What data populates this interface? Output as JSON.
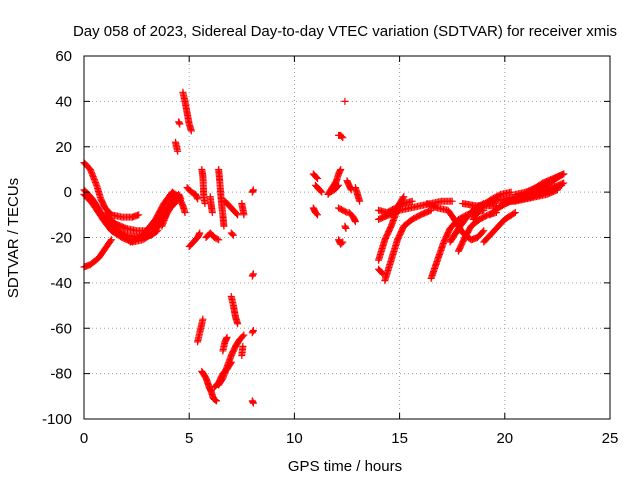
{
  "chart_data": {
    "type": "scatter",
    "title": "Day 058 of 2023, Sidereal Day-to-day VTEC variation (SDTVAR) for receiver xmis",
    "xlabel": "GPS time / hours",
    "ylabel": "SDTVAR / TECUs",
    "xlim": [
      0,
      25
    ],
    "ylim": [
      -100,
      60
    ],
    "xticks": [
      0,
      5,
      10,
      15,
      20,
      25
    ],
    "yticks": [
      -100,
      -80,
      -60,
      -40,
      -20,
      0,
      20,
      40,
      60
    ],
    "xtick_labels": [
      "0",
      "5",
      "10",
      "15",
      "20",
      "25"
    ],
    "ytick_labels": [
      "-100",
      "-80",
      "-60",
      "-40",
      "-20",
      "0",
      "20",
      "40",
      "60"
    ],
    "grid": true,
    "marker": "+",
    "marker_color": "#ff0000",
    "segments": [
      [
        [
          0.0,
          13
        ],
        [
          0.3,
          10
        ],
        [
          0.6,
          3
        ],
        [
          0.8,
          -3
        ],
        [
          1.0,
          -7
        ],
        [
          1.3,
          -10
        ],
        [
          1.8,
          -11
        ],
        [
          2.3,
          -11
        ],
        [
          2.6,
          -10
        ]
      ],
      [
        [
          0.0,
          1
        ],
        [
          0.4,
          -3
        ],
        [
          0.8,
          -9
        ],
        [
          1.2,
          -14
        ],
        [
          1.6,
          -17
        ],
        [
          2.0,
          -19
        ],
        [
          2.6,
          -20
        ],
        [
          3.2,
          -19
        ],
        [
          3.5,
          -17
        ]
      ],
      [
        [
          0.0,
          -1
        ],
        [
          0.4,
          -5
        ],
        [
          0.9,
          -12
        ],
        [
          1.3,
          -17
        ],
        [
          1.8,
          -20
        ],
        [
          2.3,
          -22
        ],
        [
          2.8,
          -21
        ],
        [
          3.3,
          -18
        ],
        [
          3.7,
          -13
        ],
        [
          4.1,
          -7
        ],
        [
          4.4,
          -4
        ]
      ],
      [
        [
          1.0,
          -10
        ],
        [
          1.5,
          -14
        ],
        [
          2.0,
          -16
        ],
        [
          2.5,
          -17
        ],
        [
          3.0,
          -17
        ],
        [
          3.4,
          -15
        ],
        [
          3.8,
          -10
        ],
        [
          4.1,
          -5
        ],
        [
          4.3,
          -1
        ]
      ],
      [
        [
          0.0,
          -33
        ],
        [
          0.3,
          -32
        ],
        [
          0.7,
          -29
        ],
        [
          1.0,
          -25
        ],
        [
          1.3,
          -21
        ]
      ],
      [
        [
          2.2,
          -22
        ],
        [
          2.8,
          -19
        ],
        [
          3.4,
          -12
        ],
        [
          3.8,
          -5
        ],
        [
          4.2,
          0
        ],
        [
          4.5,
          -2
        ],
        [
          4.7,
          -6
        ],
        [
          4.8,
          -9
        ]
      ],
      [
        [
          3.7,
          -15
        ],
        [
          4.0,
          -8
        ],
        [
          4.3,
          -3
        ],
        [
          4.5,
          -1
        ],
        [
          4.6,
          -3
        ]
      ],
      [
        [
          4.7,
          44
        ],
        [
          4.8,
          40
        ],
        [
          4.9,
          35
        ],
        [
          5.0,
          30
        ],
        [
          5.1,
          27
        ]
      ],
      [
        [
          4.5,
          31
        ],
        [
          4.55,
          30
        ]
      ],
      [
        [
          4.35,
          22
        ],
        [
          4.4,
          20
        ],
        [
          4.45,
          18
        ]
      ],
      [
        [
          4.9,
          2
        ],
        [
          5.1,
          0
        ],
        [
          5.3,
          -1
        ],
        [
          5.4,
          -3
        ]
      ],
      [
        [
          5.0,
          -24
        ],
        [
          5.2,
          -22
        ],
        [
          5.4,
          -20
        ],
        [
          5.5,
          -18
        ]
      ],
      [
        [
          5.8,
          -20
        ],
        [
          6.0,
          -18
        ],
        [
          6.2,
          -20
        ],
        [
          6.4,
          -21
        ]
      ],
      [
        [
          5.6,
          10
        ],
        [
          5.65,
          7
        ],
        [
          5.7,
          -3
        ],
        [
          5.75,
          -5
        ]
      ],
      [
        [
          6.0,
          -2
        ],
        [
          6.05,
          -6
        ],
        [
          6.1,
          -9
        ]
      ],
      [
        [
          6.4,
          10
        ],
        [
          6.45,
          5
        ],
        [
          6.5,
          -1
        ],
        [
          6.55,
          -6
        ],
        [
          6.6,
          -10
        ],
        [
          6.65,
          -15
        ]
      ],
      [
        [
          6.7,
          -4
        ],
        [
          6.9,
          -6
        ],
        [
          7.1,
          -8
        ],
        [
          7.3,
          -10
        ]
      ],
      [
        [
          7.5,
          -5
        ],
        [
          7.6,
          -10
        ]
      ],
      [
        [
          7.0,
          -18
        ],
        [
          7.1,
          -19
        ]
      ],
      [
        [
          8.0,
          0
        ],
        [
          8.05,
          1
        ]
      ],
      [
        [
          5.4,
          -66
        ],
        [
          5.5,
          -62
        ],
        [
          5.6,
          -58
        ],
        [
          5.65,
          -56
        ]
      ],
      [
        [
          5.6,
          -79
        ],
        [
          5.8,
          -82
        ],
        [
          5.95,
          -86
        ],
        [
          6.05,
          -88
        ],
        [
          6.15,
          -91
        ],
        [
          6.3,
          -92
        ]
      ],
      [
        [
          6.2,
          -86
        ],
        [
          6.4,
          -84
        ],
        [
          6.6,
          -80
        ],
        [
          6.8,
          -78
        ],
        [
          7.0,
          -75
        ]
      ],
      [
        [
          6.4,
          -85
        ],
        [
          6.6,
          -82
        ],
        [
          6.8,
          -77
        ],
        [
          7.0,
          -72
        ],
        [
          7.2,
          -68
        ],
        [
          7.4,
          -65
        ],
        [
          7.6,
          -63
        ]
      ],
      [
        [
          6.6,
          -70
        ],
        [
          6.7,
          -66
        ],
        [
          6.8,
          -64
        ]
      ],
      [
        [
          7.0,
          -46
        ],
        [
          7.1,
          -50
        ],
        [
          7.2,
          -55
        ],
        [
          7.3,
          -58
        ]
      ],
      [
        [
          7.5,
          -72
        ],
        [
          7.55,
          -68
        ]
      ],
      [
        [
          8.0,
          -92
        ],
        [
          8.05,
          -93
        ]
      ],
      [
        [
          8.0,
          -37
        ],
        [
          8.05,
          -36
        ]
      ],
      [
        [
          8.0,
          -62
        ],
        [
          8.05,
          -61
        ]
      ],
      [
        [
          10.9,
          8
        ],
        [
          11.0,
          7
        ],
        [
          11.1,
          6
        ]
      ],
      [
        [
          11.0,
          3
        ],
        [
          11.2,
          1
        ],
        [
          11.3,
          0
        ]
      ],
      [
        [
          10.9,
          -7
        ],
        [
          11.0,
          -9
        ],
        [
          11.1,
          -10
        ]
      ],
      [
        [
          11.6,
          -1
        ],
        [
          11.8,
          2
        ],
        [
          12.0,
          5
        ],
        [
          12.1,
          8
        ],
        [
          12.2,
          10
        ]
      ],
      [
        [
          11.7,
          0
        ],
        [
          11.9,
          1
        ],
        [
          12.1,
          3
        ]
      ],
      [
        [
          12.1,
          25
        ],
        [
          12.2,
          25
        ],
        [
          12.3,
          24
        ]
      ],
      [
        [
          12.4,
          40
        ]
      ],
      [
        [
          12.1,
          -7
        ],
        [
          12.3,
          -8
        ],
        [
          12.5,
          -9
        ]
      ],
      [
        [
          12.6,
          -9
        ],
        [
          12.8,
          -11
        ],
        [
          12.9,
          -13
        ]
      ],
      [
        [
          12.1,
          -21
        ],
        [
          12.2,
          -23
        ],
        [
          12.3,
          -22
        ]
      ],
      [
        [
          12.5,
          5
        ],
        [
          12.6,
          3
        ],
        [
          12.7,
          1
        ]
      ],
      [
        [
          12.9,
          2
        ],
        [
          13.0,
          -1
        ],
        [
          13.1,
          -4
        ]
      ],
      [
        [
          12.4,
          -15
        ],
        [
          12.45,
          -16
        ]
      ],
      [
        [
          14.0,
          -12
        ],
        [
          14.5,
          -10
        ],
        [
          15.0,
          -8
        ],
        [
          16.0,
          -6
        ],
        [
          17.0,
          -4
        ],
        [
          17.5,
          -4
        ]
      ],
      [
        [
          14.0,
          -8
        ],
        [
          14.4,
          -9
        ],
        [
          14.8,
          -7
        ],
        [
          15.2,
          -5
        ],
        [
          15.6,
          -4
        ]
      ],
      [
        [
          14.3,
          -39
        ],
        [
          14.6,
          -30
        ],
        [
          14.9,
          -21
        ],
        [
          15.2,
          -15
        ],
        [
          15.6,
          -12
        ],
        [
          16.0,
          -10
        ],
        [
          16.5,
          -8
        ]
      ],
      [
        [
          14.0,
          -30
        ],
        [
          14.3,
          -21
        ],
        [
          14.6,
          -15
        ],
        [
          14.8,
          -10
        ],
        [
          15.0,
          -5
        ],
        [
          15.2,
          -2
        ]
      ],
      [
        [
          14.0,
          -34
        ],
        [
          14.2,
          -36
        ]
      ],
      [
        [
          16.5,
          -38
        ],
        [
          16.8,
          -30
        ],
        [
          17.1,
          -22
        ],
        [
          17.4,
          -16
        ],
        [
          17.8,
          -12
        ],
        [
          18.2,
          -10
        ],
        [
          18.6,
          -9
        ],
        [
          19.0,
          -8
        ]
      ],
      [
        [
          16.3,
          -5
        ],
        [
          16.8,
          -7
        ],
        [
          17.3,
          -8
        ],
        [
          17.6,
          -12
        ],
        [
          18.0,
          -18
        ],
        [
          18.4,
          -21
        ],
        [
          18.7,
          -20
        ],
        [
          19.0,
          -17
        ]
      ],
      [
        [
          17.8,
          -26
        ],
        [
          18.1,
          -20
        ],
        [
          18.4,
          -15
        ],
        [
          18.8,
          -12
        ],
        [
          19.2,
          -10
        ],
        [
          19.6,
          -9
        ]
      ],
      [
        [
          18.5,
          -12
        ],
        [
          18.9,
          -6
        ],
        [
          19.4,
          -3
        ],
        [
          19.8,
          -1
        ],
        [
          20.3,
          0
        ]
      ],
      [
        [
          17.4,
          -22
        ],
        [
          17.8,
          -16
        ],
        [
          18.2,
          -11
        ],
        [
          18.6,
          -7
        ],
        [
          19.0,
          -5
        ]
      ],
      [
        [
          18.0,
          -5
        ],
        [
          18.6,
          -6
        ],
        [
          19.2,
          -6
        ],
        [
          19.6,
          -6
        ]
      ],
      [
        [
          19.0,
          -22
        ],
        [
          19.5,
          -17
        ],
        [
          20.0,
          -12
        ],
        [
          20.5,
          -9
        ]
      ],
      [
        [
          19.0,
          -6
        ],
        [
          19.5,
          -4
        ],
        [
          20.0,
          -3
        ],
        [
          20.5,
          -2
        ],
        [
          21.0,
          -1
        ],
        [
          21.5,
          1
        ],
        [
          22.0,
          3
        ],
        [
          22.6,
          7
        ]
      ],
      [
        [
          19.3,
          -10
        ],
        [
          19.8,
          -6
        ],
        [
          20.3,
          -4
        ],
        [
          20.8,
          -3
        ],
        [
          21.3,
          -2
        ],
        [
          21.8,
          0
        ],
        [
          22.3,
          2
        ],
        [
          22.8,
          4
        ]
      ],
      [
        [
          19.7,
          -7
        ],
        [
          20.2,
          -4
        ],
        [
          20.7,
          -3
        ],
        [
          21.2,
          -2
        ],
        [
          21.7,
          -1
        ],
        [
          22.2,
          1
        ],
        [
          22.7,
          3
        ]
      ],
      [
        [
          20.5,
          -1
        ],
        [
          21.0,
          0
        ],
        [
          21.5,
          2
        ],
        [
          22.0,
          4
        ],
        [
          22.4,
          6
        ],
        [
          22.8,
          8
        ]
      ],
      [
        [
          20.0,
          -4
        ],
        [
          20.5,
          -4
        ],
        [
          21.0,
          -3
        ],
        [
          21.5,
          -2
        ],
        [
          22.0,
          -1
        ],
        [
          22.5,
          1
        ]
      ],
      [
        [
          21.3,
          1
        ],
        [
          21.8,
          4
        ],
        [
          22.3,
          6
        ],
        [
          22.8,
          8
        ]
      ]
    ]
  }
}
